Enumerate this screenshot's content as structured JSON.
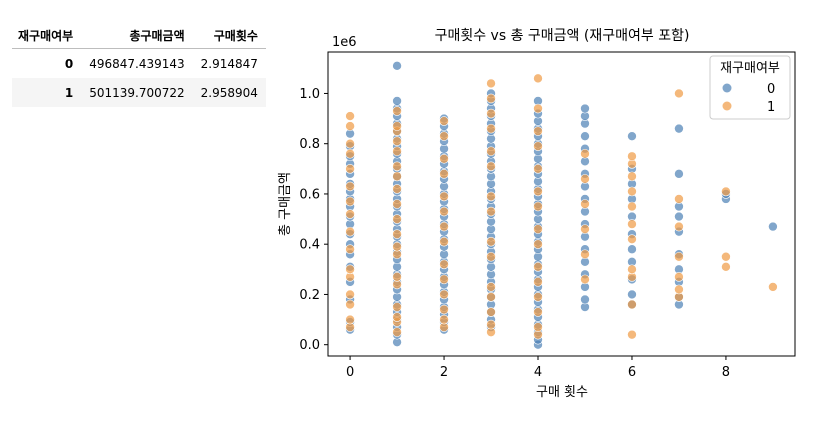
{
  "table": {
    "columns": [
      "재구매여부",
      "총구매금액",
      "구매횟수"
    ],
    "rows": [
      {
        "index": "0",
        "total": "496847.439143",
        "count": "2.914847"
      },
      {
        "index": "1",
        "total": "501139.700722",
        "count": "2.958904"
      }
    ]
  },
  "chart_data": {
    "type": "scatter",
    "title": "구매횟수 vs 총 구매금액 (재구매여부 포함)",
    "xlabel": "구매 횟수",
    "ylabel": "총 구매금액",
    "y_offset_text": "1e6",
    "xlim": [
      -0.47,
      9.47
    ],
    "ylim": [
      -0.045,
      1.165
    ],
    "xticks": [
      0,
      2,
      4,
      6,
      8
    ],
    "yticks": [
      0.0,
      0.2,
      0.4,
      0.6,
      0.8,
      1.0
    ],
    "ytick_labels": [
      "0.0",
      "0.2",
      "0.4",
      "0.6",
      "0.8",
      "1.0"
    ],
    "grid": false,
    "legend": {
      "title": "재구매여부",
      "position": "upper right",
      "entries": [
        "0",
        "1"
      ]
    },
    "series": [
      {
        "name": "0",
        "color": "#4c80b5",
        "points": {
          "0": [
            0.06,
            0.09,
            0.18,
            0.25,
            0.31,
            0.36,
            0.4,
            0.44,
            0.48,
            0.51,
            0.55,
            0.58,
            0.61,
            0.64,
            0.68,
            0.72,
            0.75,
            0.79,
            0.84
          ],
          "1": [
            0.01,
            0.04,
            0.07,
            0.1,
            0.13,
            0.16,
            0.19,
            0.22,
            0.25,
            0.28,
            0.31,
            0.34,
            0.37,
            0.4,
            0.43,
            0.46,
            0.49,
            0.52,
            0.55,
            0.58,
            0.61,
            0.64,
            0.67,
            0.7,
            0.73,
            0.76,
            0.79,
            0.82,
            0.85,
            0.88,
            0.91,
            0.94,
            0.97,
            1.11
          ],
          "2": [
            0.06,
            0.09,
            0.12,
            0.15,
            0.18,
            0.21,
            0.24,
            0.27,
            0.3,
            0.33,
            0.36,
            0.39,
            0.42,
            0.45,
            0.48,
            0.51,
            0.54,
            0.57,
            0.6,
            0.63,
            0.66,
            0.69,
            0.72,
            0.75,
            0.78,
            0.81,
            0.84,
            0.87,
            0.9
          ],
          "3": [
            0.07,
            0.1,
            0.13,
            0.16,
            0.19,
            0.22,
            0.25,
            0.28,
            0.31,
            0.34,
            0.37,
            0.4,
            0.43,
            0.46,
            0.49,
            0.52,
            0.55,
            0.58,
            0.61,
            0.64,
            0.67,
            0.7,
            0.73,
            0.76,
            0.79,
            0.82,
            0.85,
            0.88,
            0.91,
            0.94,
            0.97,
            1.0
          ],
          "4": [
            0.0,
            0.02,
            0.05,
            0.08,
            0.11,
            0.14,
            0.17,
            0.2,
            0.23,
            0.26,
            0.29,
            0.32,
            0.35,
            0.38,
            0.41,
            0.44,
            0.47,
            0.5,
            0.53,
            0.56,
            0.59,
            0.62,
            0.65,
            0.68,
            0.71,
            0.74,
            0.77,
            0.8,
            0.83,
            0.86,
            0.89,
            0.92,
            0.97
          ],
          "5": [
            0.15,
            0.18,
            0.23,
            0.28,
            0.33,
            0.38,
            0.43,
            0.48,
            0.53,
            0.58,
            0.63,
            0.68,
            0.73,
            0.78,
            0.83,
            0.88,
            0.91,
            0.94
          ],
          "6": [
            0.16,
            0.2,
            0.26,
            0.33,
            0.38,
            0.44,
            0.51,
            0.58,
            0.64,
            0.7,
            0.83
          ],
          "7": [
            0.16,
            0.19,
            0.25,
            0.3,
            0.36,
            0.45,
            0.51,
            0.55,
            0.68,
            0.86
          ],
          "8": [
            0.58,
            0.6
          ],
          "9": [
            0.47
          ]
        }
      },
      {
        "name": "1",
        "color": "#f09a43",
        "points": {
          "0": [
            0.07,
            0.1,
            0.16,
            0.2,
            0.27,
            0.3,
            0.38,
            0.45,
            0.52,
            0.57,
            0.63,
            0.7,
            0.76,
            0.8,
            0.87,
            0.91
          ],
          "1": [
            0.05,
            0.09,
            0.11,
            0.15,
            0.24,
            0.27,
            0.36,
            0.39,
            0.44,
            0.5,
            0.56,
            0.62,
            0.67,
            0.71,
            0.77,
            0.81,
            0.85,
            0.87,
            0.93
          ],
          "2": [
            0.07,
            0.1,
            0.14,
            0.2,
            0.26,
            0.32,
            0.41,
            0.47,
            0.53,
            0.59,
            0.68,
            0.74,
            0.83,
            0.89
          ],
          "3": [
            0.05,
            0.08,
            0.13,
            0.19,
            0.23,
            0.35,
            0.41,
            0.53,
            0.59,
            0.71,
            0.77,
            0.86,
            0.92,
            0.98,
            1.04
          ],
          "4": [
            0.04,
            0.07,
            0.13,
            0.19,
            0.25,
            0.31,
            0.4,
            0.46,
            0.55,
            0.61,
            0.7,
            0.79,
            0.85,
            0.94,
            1.06
          ],
          "5": [
            0.26,
            0.36,
            0.46,
            0.56,
            0.66,
            0.76
          ],
          "6": [
            0.04,
            0.16,
            0.27,
            0.3,
            0.42,
            0.48,
            0.55,
            0.61,
            0.67,
            0.72,
            0.75
          ],
          "7": [
            0.19,
            0.22,
            0.27,
            0.35,
            0.47,
            0.58,
            1.0
          ],
          "8": [
            0.31,
            0.35,
            0.61
          ],
          "9": [
            0.23
          ]
        }
      }
    ]
  }
}
